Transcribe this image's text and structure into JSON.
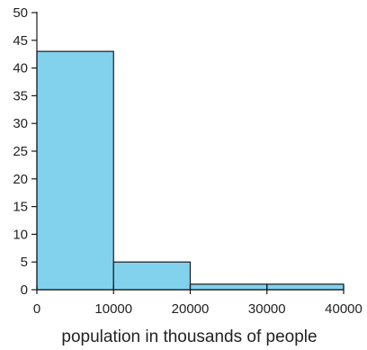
{
  "chart_data": {
    "type": "bar",
    "subtype": "histogram",
    "title": "",
    "xlabel": "population in thousands of people",
    "ylabel": "",
    "bins": [
      {
        "x0": 0,
        "x1": 10000,
        "value": 43
      },
      {
        "x0": 10000,
        "x1": 20000,
        "value": 5
      },
      {
        "x0": 20000,
        "x1": 30000,
        "value": 1
      },
      {
        "x0": 30000,
        "x1": 40000,
        "value": 1
      }
    ],
    "xlim": [
      0,
      40000
    ],
    "ylim": [
      0,
      50
    ],
    "xticks": [
      "0",
      "10000",
      "20000",
      "30000",
      "40000"
    ],
    "yticks": [
      "0",
      "5",
      "10",
      "15",
      "20",
      "25",
      "30",
      "35",
      "40",
      "45",
      "50"
    ],
    "grid": false,
    "legend": "none",
    "colors": {
      "bar_fill": "#82d2ee",
      "bar_stroke": "#1a1a1a",
      "axis": "#1a1a1a"
    }
  }
}
